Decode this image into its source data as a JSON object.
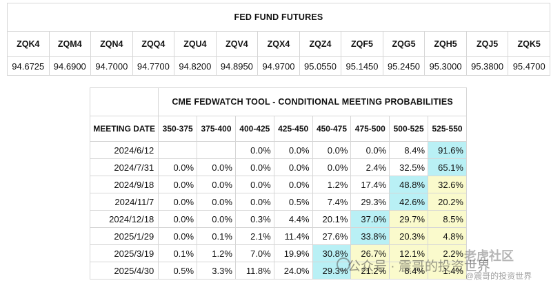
{
  "futures": {
    "title": "FED FUND FUTURES",
    "codes": [
      "ZQK4",
      "ZQM4",
      "ZQN4",
      "ZQQ4",
      "ZQU4",
      "ZQV4",
      "ZQX4",
      "ZQZ4",
      "ZQF5",
      "ZQG5",
      "ZQH5",
      "ZQJ5",
      "ZQK5"
    ],
    "prices": [
      "94.6725",
      "94.6900",
      "94.7000",
      "94.7700",
      "94.8200",
      "94.8950",
      "94.9700",
      "95.0550",
      "95.1450",
      "95.2450",
      "95.3000",
      "95.3800",
      "95.4700"
    ]
  },
  "fedwatch": {
    "title": "CME FEDWATCH TOOL - CONDITIONAL MEETING PROBABILITIES",
    "date_header": "MEETING DATE",
    "ranges": [
      "350-375",
      "375-400",
      "400-425",
      "425-450",
      "450-475",
      "475-500",
      "500-525",
      "525-550"
    ],
    "rows": [
      {
        "date": "2024/6/12",
        "values": [
          "",
          "",
          "0.0%",
          "0.0%",
          "0.0%",
          "0.0%",
          "8.4%",
          "91.6%"
        ]
      },
      {
        "date": "2024/7/31",
        "values": [
          "0.0%",
          "0.0%",
          "0.0%",
          "0.0%",
          "0.0%",
          "2.4%",
          "32.5%",
          "65.1%"
        ]
      },
      {
        "date": "2024/9/18",
        "values": [
          "0.0%",
          "0.0%",
          "0.0%",
          "0.0%",
          "1.2%",
          "17.4%",
          "48.8%",
          "32.6%"
        ]
      },
      {
        "date": "2024/11/7",
        "values": [
          "0.0%",
          "0.0%",
          "0.0%",
          "0.5%",
          "7.4%",
          "29.3%",
          "42.6%",
          "20.2%"
        ]
      },
      {
        "date": "2024/12/18",
        "values": [
          "0.0%",
          "0.0%",
          "0.3%",
          "4.4%",
          "20.1%",
          "37.0%",
          "29.7%",
          "8.5%"
        ]
      },
      {
        "date": "2025/1/29",
        "values": [
          "0.0%",
          "0.1%",
          "2.1%",
          "11.4%",
          "27.6%",
          "33.8%",
          "20.3%",
          "4.8%"
        ]
      },
      {
        "date": "2025/3/19",
        "values": [
          "0.1%",
          "1.2%",
          "7.0%",
          "19.9%",
          "30.8%",
          "26.7%",
          "12.1%",
          "2.2%"
        ]
      },
      {
        "date": "2025/4/30",
        "values": [
          "0.5%",
          "3.3%",
          "11.8%",
          "24.0%",
          "29.3%",
          "21.2%",
          "8.4%",
          "1.4%"
        ]
      }
    ],
    "highlight": [
      [
        null,
        null,
        null,
        null,
        null,
        null,
        null,
        "blue"
      ],
      [
        null,
        null,
        null,
        null,
        null,
        null,
        null,
        "blue"
      ],
      [
        null,
        null,
        null,
        null,
        null,
        null,
        "blue",
        "yellow"
      ],
      [
        null,
        null,
        null,
        null,
        null,
        null,
        "blue",
        "yellow"
      ],
      [
        null,
        null,
        null,
        null,
        null,
        "blue",
        "yellow",
        "yellow"
      ],
      [
        null,
        null,
        null,
        null,
        null,
        "blue",
        "yellow",
        "yellow"
      ],
      [
        null,
        null,
        null,
        null,
        "blue",
        "yellow",
        "yellow",
        "yellow"
      ],
      [
        null,
        null,
        null,
        null,
        "blue",
        "yellow",
        "yellow",
        "yellow"
      ]
    ],
    "colors": {
      "blue": "#b9f0f5",
      "yellow": "#fafacc"
    }
  },
  "watermark": {
    "top_right": "老虎社区",
    "center": "公众号 · 震哥的投资世界",
    "bottom_right": "@震哥的投资世界"
  }
}
